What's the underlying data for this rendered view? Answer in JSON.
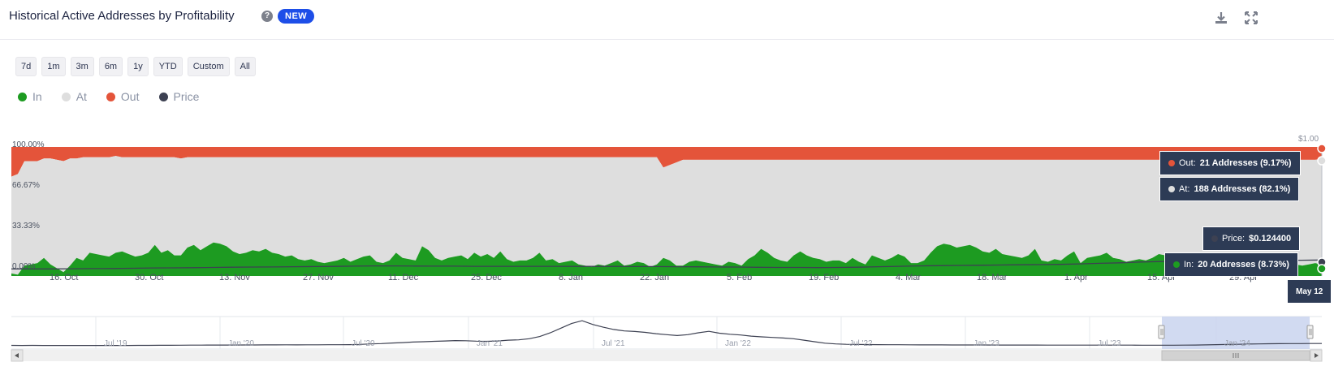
{
  "header": {
    "title": "Historical Active Addresses by Profitability",
    "badge": "NEW",
    "help_icon": "question-circle-icon",
    "download_icon": "download-icon",
    "fullscreen_icon": "expand-icon"
  },
  "range_buttons": [
    "7d",
    "1m",
    "3m",
    "6m",
    "1y",
    "YTD",
    "Custom",
    "All"
  ],
  "legend": [
    {
      "label": "In",
      "color": "#1d9b21"
    },
    {
      "label": "At",
      "color": "#dedede"
    },
    {
      "label": "Out",
      "color": "#e4543a"
    },
    {
      "label": "Price",
      "color": "#3d4152"
    }
  ],
  "axis": {
    "y_left": [
      "100.00%",
      "66.67%",
      "33.33%",
      "0.00%"
    ],
    "y_right_top": "$1.00",
    "x_labels": [
      "16. Oct",
      "30. Oct",
      "13. Nov",
      "27. Nov",
      "11. Dec",
      "25. Dec",
      "8. Jan",
      "22. Jan",
      "5. Feb",
      "19. Feb",
      "4. Mar",
      "18. Mar",
      "1. Apr",
      "15. Apr",
      "29. Apr"
    ],
    "x_current": "May 12"
  },
  "tooltips": {
    "out": {
      "label": "Out:",
      "value": "21 Addresses (9.17%)"
    },
    "at": {
      "label": "At:",
      "value": "188 Addresses (82.1%)"
    },
    "price": {
      "label": "Price:",
      "value": "$0.124400"
    },
    "in": {
      "label": "In:",
      "value": "20 Addresses (8.73%)"
    }
  },
  "navigator": {
    "labels": [
      "Jul '19",
      "Jan '20",
      "Jul '20",
      "Jan '21",
      "Jul '21",
      "Jan '22",
      "Jul '22",
      "Jan '23",
      "Jul '23",
      "Jan '24"
    ],
    "scroll_thumb_icon": "grip-lines-icon",
    "left_arrow_icon": "left-arrow-icon",
    "right_arrow_icon": "right-arrow-icon"
  },
  "chart_data": {
    "type": "area",
    "stacked": "percent",
    "x_start": "2023-10-10",
    "x_end": "2024-05-12",
    "ylim": [
      0,
      100
    ],
    "grid": false,
    "series": [
      {
        "name": "In",
        "color": "#1d9b21",
        "unit": "%",
        "values": [
          2,
          1,
          8,
          9,
          10,
          14,
          9,
          6,
          3,
          8,
          14,
          12,
          18,
          17,
          16,
          15,
          18,
          19,
          17,
          15,
          16,
          18,
          24,
          18,
          20,
          16,
          16,
          22,
          24,
          20,
          23,
          26,
          25,
          23,
          19,
          17,
          18,
          20,
          19,
          21,
          18,
          17,
          15,
          16,
          13,
          12,
          13,
          11,
          10,
          11,
          12,
          14,
          11,
          13,
          15,
          16,
          11,
          10,
          12,
          18,
          14,
          13,
          12,
          23,
          20,
          14,
          12,
          14,
          15,
          16,
          13,
          18,
          15,
          17,
          14,
          19,
          13,
          11,
          12,
          12,
          14,
          18,
          12,
          13,
          10,
          11,
          12,
          9,
          8,
          7,
          9,
          8,
          10,
          12,
          8,
          9,
          11,
          10,
          7,
          9,
          14,
          12,
          8,
          8,
          11,
          12,
          11,
          10,
          9,
          8,
          11,
          10,
          8,
          13,
          16,
          21,
          18,
          14,
          12,
          11,
          16,
          19,
          16,
          14,
          13,
          11,
          12,
          12,
          10,
          14,
          11,
          9,
          16,
          14,
          12,
          14,
          17,
          15,
          10,
          10,
          12,
          18,
          23,
          25,
          24,
          22,
          23,
          24,
          22,
          19,
          18,
          21,
          17,
          16,
          15,
          14,
          16,
          21,
          12,
          11,
          13,
          12,
          16,
          19,
          10,
          14,
          15,
          16,
          18,
          14,
          13,
          11,
          12,
          13,
          12,
          14,
          17,
          16,
          13,
          13,
          12,
          11,
          16,
          14,
          12,
          13,
          11,
          8,
          9,
          10,
          10,
          9,
          10,
          12,
          13,
          11,
          10,
          9,
          8,
          9,
          10,
          8.7
        ]
      },
      {
        "name": "At",
        "color": "#dedede",
        "unit": "%",
        "values": [
          75,
          78,
          81,
          80,
          79,
          77,
          82,
          84,
          86,
          83,
          77,
          80,
          74,
          75,
          76,
          77,
          75,
          73,
          75,
          77,
          76,
          74,
          68,
          74,
          72,
          76,
          75,
          70,
          68,
          72,
          69,
          66,
          67,
          69,
          73,
          75,
          74,
          72,
          73,
          71,
          74,
          75,
          77,
          76,
          79,
          80,
          79,
          81,
          82,
          81,
          80,
          78,
          81,
          79,
          77,
          76,
          81,
          82,
          80,
          74,
          78,
          79,
          80,
          69,
          72,
          78,
          80,
          78,
          77,
          76,
          79,
          74,
          77,
          75,
          78,
          73,
          79,
          81,
          80,
          80,
          78,
          74,
          80,
          79,
          82,
          81,
          80,
          83,
          84,
          85,
          83,
          84,
          82,
          80,
          84,
          83,
          81,
          82,
          85,
          83,
          70,
          74,
          80,
          82,
          79,
          78,
          79,
          80,
          81,
          82,
          79,
          80,
          82,
          77,
          74,
          69,
          72,
          76,
          78,
          79,
          74,
          71,
          74,
          76,
          77,
          79,
          78,
          78,
          80,
          76,
          79,
          81,
          74,
          76,
          78,
          76,
          73,
          75,
          80,
          80,
          78,
          72,
          67,
          65,
          66,
          68,
          67,
          66,
          68,
          71,
          72,
          69,
          73,
          74,
          75,
          76,
          74,
          69,
          78,
          79,
          77,
          78,
          74,
          71,
          80,
          76,
          75,
          74,
          72,
          76,
          77,
          79,
          78,
          77,
          78,
          76,
          73,
          74,
          77,
          77,
          78,
          79,
          74,
          76,
          78,
          77,
          79,
          82,
          81,
          80,
          80,
          81,
          80,
          78,
          77,
          79,
          80,
          81,
          82,
          81,
          80,
          82.1
        ]
      },
      {
        "name": "Out",
        "color": "#e4543a",
        "unit": "%",
        "values": [
          23,
          21,
          11,
          11,
          11,
          9,
          9,
          10,
          11,
          9,
          9,
          8,
          8,
          8,
          8,
          8,
          7,
          8,
          8,
          8,
          8,
          8,
          8,
          8,
          8,
          8,
          9,
          8,
          8,
          8,
          8,
          8,
          8,
          8,
          8,
          8,
          8,
          8,
          8,
          8,
          8,
          8,
          8,
          8,
          8,
          8,
          8,
          8,
          8,
          8,
          8,
          8,
          8,
          8,
          8,
          8,
          8,
          8,
          8,
          8,
          8,
          8,
          8,
          8,
          8,
          8,
          8,
          8,
          8,
          8,
          8,
          8,
          8,
          8,
          8,
          8,
          8,
          8,
          8,
          8,
          8,
          8,
          8,
          8,
          8,
          8,
          8,
          8,
          8,
          8,
          8,
          8,
          8,
          8,
          8,
          8,
          8,
          8,
          8,
          8,
          16,
          14,
          12,
          10,
          10,
          10,
          10,
          10,
          10,
          10,
          10,
          10,
          10,
          10,
          10,
          10,
          10,
          10,
          10,
          10,
          10,
          10,
          10,
          10,
          10,
          10,
          10,
          10,
          10,
          10,
          10,
          10,
          10,
          10,
          10,
          10,
          10,
          10,
          10,
          10,
          10,
          10,
          10,
          10,
          10,
          10,
          10,
          10,
          10,
          10,
          10,
          10,
          10,
          10,
          10,
          10,
          10,
          10,
          10,
          10,
          10,
          10,
          10,
          10,
          10,
          10,
          10,
          10,
          10,
          10,
          10,
          10,
          10,
          10,
          10,
          10,
          10,
          10,
          10,
          10,
          10,
          10,
          10,
          10,
          10,
          10,
          10,
          10,
          10,
          10,
          10,
          10,
          10,
          10,
          10,
          10,
          10,
          10,
          10,
          10,
          10,
          9.17
        ]
      },
      {
        "name": "Price",
        "color": "#3d4152",
        "unit": "$",
        "axis": "right",
        "values": [
          0.055,
          0.055,
          0.055,
          0.056,
          0.057,
          0.058,
          0.06,
          0.062,
          0.063,
          0.064,
          0.066,
          0.068,
          0.069,
          0.07,
          0.072,
          0.073,
          0.074,
          0.076,
          0.078,
          0.078,
          0.077,
          0.076,
          0.076,
          0.075,
          0.075,
          0.075,
          0.075,
          0.075,
          0.074,
          0.074,
          0.074,
          0.073,
          0.073,
          0.072,
          0.071,
          0.07,
          0.069,
          0.067,
          0.066,
          0.066,
          0.065,
          0.066,
          0.068,
          0.072,
          0.075,
          0.078,
          0.08,
          0.082,
          0.083,
          0.085,
          0.087,
          0.088,
          0.09,
          0.094,
          0.098,
          0.102,
          0.108,
          0.112,
          0.115,
          0.119,
          0.122,
          0.124,
          0.122,
          0.121,
          0.122,
          0.124
        ]
      }
    ],
    "navigator_price": [
      0.02,
      0.018,
      0.022,
      0.019,
      0.018,
      0.018,
      0.017,
      0.017,
      0.016,
      0.016,
      0.017,
      0.018,
      0.02,
      0.024,
      0.026,
      0.026,
      0.03,
      0.034,
      0.036,
      0.038,
      0.04,
      0.041,
      0.043,
      0.045,
      0.048,
      0.05,
      0.052,
      0.05,
      0.051,
      0.054,
      0.055,
      0.058,
      0.063,
      0.075,
      0.1,
      0.12,
      0.15,
      0.17,
      0.2,
      0.22,
      0.24,
      0.26,
      0.28,
      0.27,
      0.25,
      0.24,
      0.26,
      0.3,
      0.32,
      0.38,
      0.5,
      0.7,
      0.95,
      1.2,
      1.35,
      1.15,
      1.0,
      0.88,
      0.8,
      0.77,
      0.72,
      0.65,
      0.6,
      0.55,
      0.6,
      0.7,
      0.78,
      0.68,
      0.62,
      0.58,
      0.52,
      0.48,
      0.45,
      0.42,
      0.38,
      0.3,
      0.22,
      0.14,
      0.1,
      0.08,
      0.07,
      0.065,
      0.06,
      0.058,
      0.055,
      0.052,
      0.05,
      0.048,
      0.046,
      0.045,
      0.044,
      0.043,
      0.042,
      0.041,
      0.04,
      0.04,
      0.039,
      0.038,
      0.037,
      0.036,
      0.036,
      0.035,
      0.035,
      0.034,
      0.034,
      0.033,
      0.033,
      0.032,
      0.032,
      0.032,
      0.032,
      0.033,
      0.04,
      0.05,
      0.06,
      0.07,
      0.08,
      0.09,
      0.1,
      0.11,
      0.115,
      0.118,
      0.12,
      0.122,
      0.124
    ]
  }
}
